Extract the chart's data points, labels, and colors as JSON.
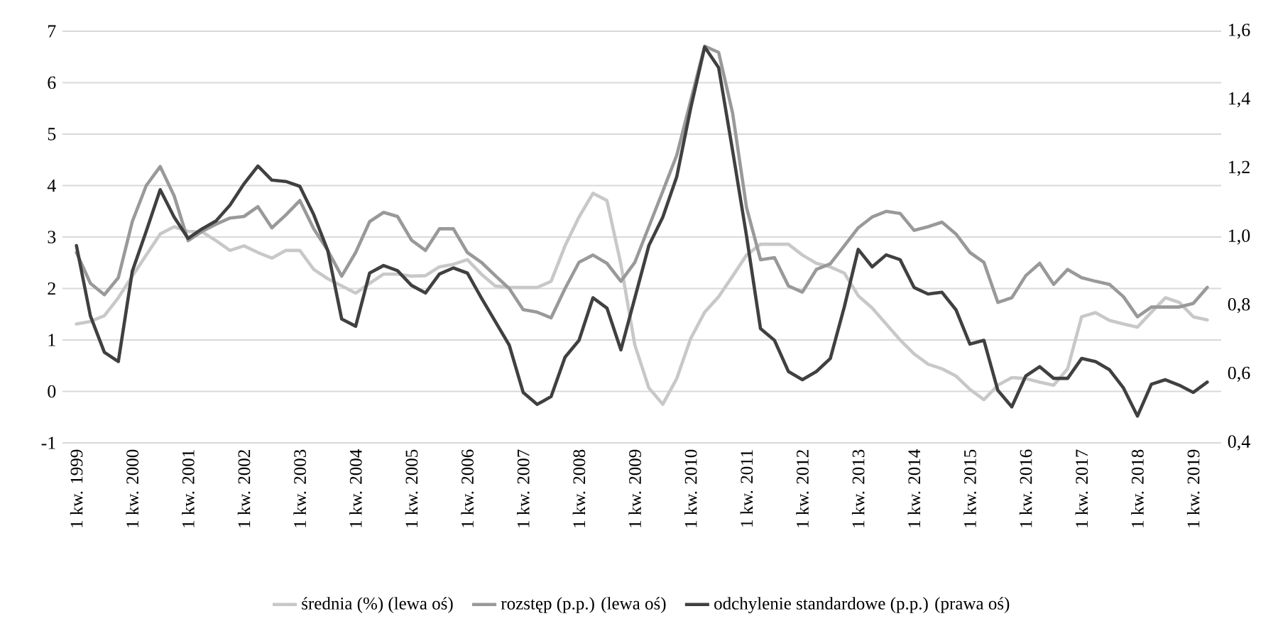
{
  "chart_data": {
    "type": "line",
    "categories": [
      "1 kw. 1999",
      null,
      null,
      null,
      "1 kw. 2000",
      null,
      null,
      null,
      "1 kw. 2001",
      null,
      null,
      null,
      "1 kw. 2002",
      null,
      null,
      null,
      "1 kw. 2003",
      null,
      null,
      null,
      "1 kw. 2004",
      null,
      null,
      null,
      "1 kw. 2005",
      null,
      null,
      null,
      "1 kw. 2006",
      null,
      null,
      null,
      "1 kw. 2007",
      null,
      null,
      null,
      "1 kw. 2008",
      null,
      null,
      null,
      "1 kw. 2009",
      null,
      null,
      null,
      "1 kw. 2010",
      null,
      null,
      null,
      "1 kw. 2011",
      null,
      null,
      null,
      "1 kw. 2012",
      null,
      null,
      null,
      "1 kw. 2013",
      null,
      null,
      null,
      "1 kw. 2014",
      null,
      null,
      null,
      "1 kw. 2015",
      null,
      null,
      null,
      "1 kw. 2016",
      null,
      null,
      null,
      "1 kw. 2017",
      null,
      null,
      null,
      "1 kw. 2018",
      null,
      null,
      null,
      "1 kw. 2019",
      null
    ],
    "series": [
      {
        "name": "średnia (%) (lewa oś)",
        "color": "#c8c8c8",
        "values": [
          1.31,
          1.36,
          1.47,
          1.82,
          2.24,
          2.65,
          3.06,
          3.2,
          3.11,
          3.1,
          2.93,
          2.74,
          2.83,
          2.7,
          2.59,
          2.74,
          2.74,
          2.37,
          2.19,
          2.05,
          1.91,
          2.1,
          2.28,
          2.28,
          2.24,
          2.25,
          2.42,
          2.47,
          2.56,
          2.28,
          2.05,
          2.02,
          2.02,
          2.02,
          2.14,
          2.83,
          3.39,
          3.85,
          3.71,
          2.47,
          0.9,
          0.07,
          -0.25,
          0.25,
          1.03,
          1.54,
          1.84,
          2.24,
          2.65,
          2.86,
          2.86,
          2.86,
          2.65,
          2.49,
          2.42,
          2.3,
          1.86,
          1.62,
          1.31,
          1.0,
          0.73,
          0.53,
          0.44,
          0.3,
          0.04,
          -0.16,
          0.12,
          0.27,
          0.25,
          0.18,
          0.12,
          0.44,
          1.45,
          1.53,
          1.38,
          1.31,
          1.25,
          1.54,
          1.82,
          1.73,
          1.45,
          1.39
        ]
      },
      {
        "name": "rozstęp (p.p.) (lewa oś)",
        "color": "#999999",
        "values": [
          2.7,
          2.1,
          1.88,
          2.21,
          3.3,
          4.0,
          4.37,
          3.8,
          2.93,
          3.11,
          3.25,
          3.37,
          3.4,
          3.59,
          3.18,
          3.43,
          3.71,
          3.16,
          2.74,
          2.24,
          2.7,
          3.3,
          3.48,
          3.4,
          2.94,
          2.74,
          3.16,
          3.16,
          2.7,
          2.51,
          2.25,
          2.0,
          1.59,
          1.54,
          1.43,
          2.0,
          2.51,
          2.65,
          2.49,
          2.14,
          2.51,
          3.2,
          3.89,
          4.59,
          5.65,
          6.71,
          6.59,
          5.41,
          3.57,
          2.56,
          2.6,
          2.05,
          1.93,
          2.37,
          2.48,
          2.83,
          3.18,
          3.39,
          3.5,
          3.46,
          3.13,
          3.2,
          3.29,
          3.06,
          2.7,
          2.51,
          1.73,
          1.82,
          2.25,
          2.49,
          2.08,
          2.37,
          2.21,
          2.14,
          2.08,
          1.84,
          1.45,
          1.64,
          1.64,
          1.64,
          1.71,
          2.02
        ]
      },
      {
        "name": "odchylenie standardowe (p.p.) (prawa oś)",
        "color": "#404040",
        "axis": "y2",
        "values": [
          0.975,
          0.77,
          0.664,
          0.637,
          0.9,
          1.017,
          1.138,
          1.058,
          0.996,
          1.024,
          1.047,
          1.093,
          1.155,
          1.207,
          1.166,
          1.162,
          1.148,
          1.065,
          0.961,
          0.761,
          0.74,
          0.895,
          0.917,
          0.902,
          0.859,
          0.837,
          0.892,
          0.91,
          0.895,
          0.823,
          0.754,
          0.685,
          0.547,
          0.512,
          0.535,
          0.65,
          0.699,
          0.823,
          0.793,
          0.671,
          0.823,
          0.975,
          1.058,
          1.176,
          1.376,
          1.554,
          1.494,
          1.252,
          1.003,
          0.733,
          0.699,
          0.608,
          0.584,
          0.608,
          0.646,
          0.796,
          0.964,
          0.913,
          0.948,
          0.934,
          0.853,
          0.834,
          0.839,
          0.788,
          0.688,
          0.699,
          0.553,
          0.505,
          0.595,
          0.622,
          0.588,
          0.588,
          0.646,
          0.637,
          0.613,
          0.56,
          0.478,
          0.571,
          0.584,
          0.568,
          0.547,
          0.577
        ]
      }
    ],
    "ylim": [
      -1,
      7
    ],
    "yticks": [
      -1,
      0,
      1,
      2,
      3,
      4,
      5,
      6,
      7
    ],
    "y2lim": [
      0.4,
      1.6
    ],
    "y2ticks": [
      {
        "value": 0.4,
        "label": "0,4"
      },
      {
        "value": 0.6,
        "label": "0,6"
      },
      {
        "value": 0.8,
        "label": "0,8"
      },
      {
        "value": 1.0,
        "label": "1,0"
      },
      {
        "value": 1.2,
        "label": "1,2"
      },
      {
        "value": 1.4,
        "label": "1,4"
      },
      {
        "value": 1.6,
        "label": "1,6"
      }
    ],
    "grid": "y",
    "legend": "bottom"
  }
}
